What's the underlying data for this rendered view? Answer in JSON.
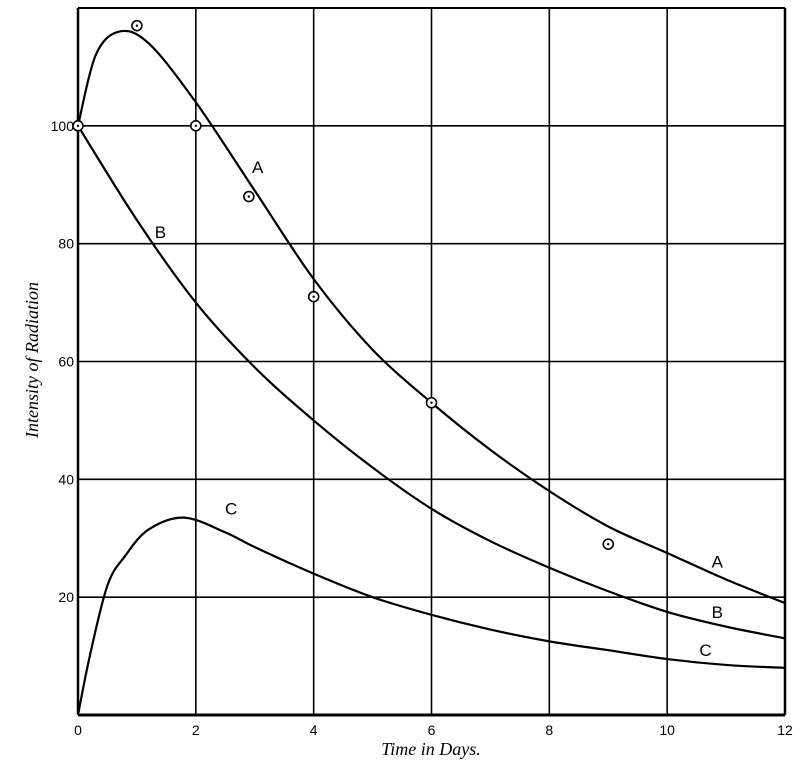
{
  "chart_data": {
    "type": "line",
    "title": "",
    "xlabel": "Time in Days.",
    "ylabel": "Intensity of Radiation",
    "xlim": [
      0,
      12
    ],
    "ylim": [
      0,
      120
    ],
    "xticks": [
      0,
      2,
      4,
      6,
      8,
      10,
      12
    ],
    "yticks": [
      20,
      40,
      60,
      80,
      100
    ],
    "grid": true,
    "color": "#000000",
    "series": [
      {
        "name": "A",
        "x": [
          0,
          0.3,
          0.7,
          1.2,
          2,
          3,
          4,
          5,
          6,
          7,
          8,
          9,
          10,
          11,
          12
        ],
        "values": [
          100,
          112,
          116,
          114,
          104,
          89,
          74,
          62,
          53,
          45,
          38,
          32,
          27.5,
          23,
          19
        ]
      },
      {
        "name": "B",
        "x": [
          0,
          1,
          2,
          3,
          4,
          5,
          6,
          7,
          8,
          9,
          10,
          11,
          12
        ],
        "values": [
          100,
          84,
          70,
          59,
          50,
          42,
          35,
          29.5,
          25,
          21,
          17.5,
          15,
          13
        ]
      },
      {
        "name": "C",
        "x": [
          0,
          0.2,
          0.5,
          0.8,
          1.2,
          1.8,
          2.5,
          3,
          4,
          5,
          6,
          7,
          8,
          9,
          10,
          11,
          12
        ],
        "values": [
          0,
          10,
          22,
          27,
          31.5,
          33.5,
          31,
          28.5,
          24,
          20,
          17,
          14.5,
          12.5,
          11,
          9.5,
          8.5,
          8
        ]
      }
    ],
    "observed_points": {
      "x": [
        0,
        1,
        2,
        2.9,
        4,
        6,
        9
      ],
      "values": [
        100,
        117,
        100,
        88,
        71,
        53,
        29
      ]
    },
    "labels": [
      {
        "text": "A",
        "x": 3.05,
        "y": 92
      },
      {
        "text": "A",
        "x": 10.85,
        "y": 25
      },
      {
        "text": "B",
        "x": 1.4,
        "y": 81
      },
      {
        "text": "B",
        "x": 10.85,
        "y": 16.5
      },
      {
        "text": "C",
        "x": 2.6,
        "y": 34
      },
      {
        "text": "C",
        "x": 10.65,
        "y": 10
      }
    ]
  }
}
